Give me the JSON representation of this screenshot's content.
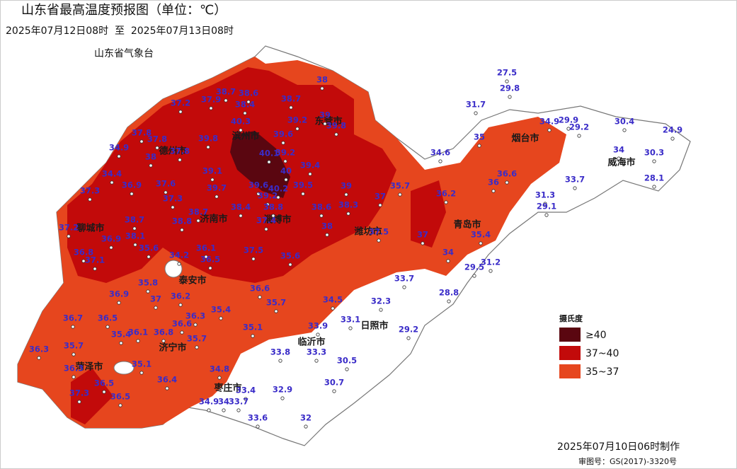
{
  "header": {
    "title": "山东省最高温度预报图（单位：℃）",
    "subtitle": "2025年07月12日08时  至  2025年07月13日08时",
    "agency": "山东省气象台"
  },
  "cities": [
    "滨州市",
    "东营市",
    "德州市",
    "烟台市",
    "威海市",
    "聊城市",
    "济南市",
    "淄博市",
    "潍坊市",
    "青岛市",
    "泰安市",
    "日照市",
    "临沂市",
    "济宁市",
    "菏泽市",
    "枣庄市"
  ],
  "stations": [
    27.5,
    29.8,
    31.7,
    34.9,
    29.9,
    29.2,
    30.4,
    24.9,
    35,
    34,
    30.3,
    28.1,
    34.6,
    33.7,
    31.3,
    29.1,
    36.6,
    36,
    36.2,
    35.7,
    37,
    38,
    38.7,
    38.6,
    38.7,
    37.9,
    37.2,
    38.4,
    40.3,
    39,
    39.2,
    39.8,
    39.6,
    37.8,
    37.8,
    37.8,
    39.8,
    34.9,
    38,
    40.1,
    39.2,
    40,
    39.4,
    34.4,
    39.1,
    37.3,
    36.9,
    37.6,
    39.7,
    39.6,
    40.2,
    39.5,
    39,
    39.2,
    37.3,
    38.3,
    38.7,
    38.4,
    38.8,
    38.6,
    37.2,
    38.7,
    38.8,
    37.4,
    38,
    37.5,
    38.1,
    36.9,
    37,
    35.4,
    35.6,
    36.1,
    37.5,
    35.6,
    34,
    36.8,
    37.1,
    34.2,
    36.5,
    29.5,
    31.2,
    35.8,
    33.7,
    28.8,
    36.9,
    37,
    36.2,
    36.6,
    35.7,
    34.5,
    32.3,
    36.3,
    35.4,
    36.7,
    36.5,
    36.6,
    33.1,
    35.1,
    33.9,
    29.2,
    35.4,
    36.1,
    36.8,
    35.7,
    36.3,
    35.7,
    33.8,
    33.3,
    30.5,
    36.3,
    35.1,
    36.4,
    34.8,
    30.7,
    36.5,
    33.4,
    32.9,
    37.3,
    36.5,
    34.9,
    34,
    33.7,
    33.6,
    32
  ],
  "legend": {
    "title": "摄氏度",
    "items": [
      {
        "label": "≥40",
        "color": "#5a0610"
      },
      {
        "label": "37~40",
        "color": "#c20a0a"
      },
      {
        "label": "35~37",
        "color": "#e6461e"
      }
    ]
  },
  "footer": {
    "made": "2025年07月10日06时制作",
    "review": "审图号：GS(2017)-3320号"
  }
}
